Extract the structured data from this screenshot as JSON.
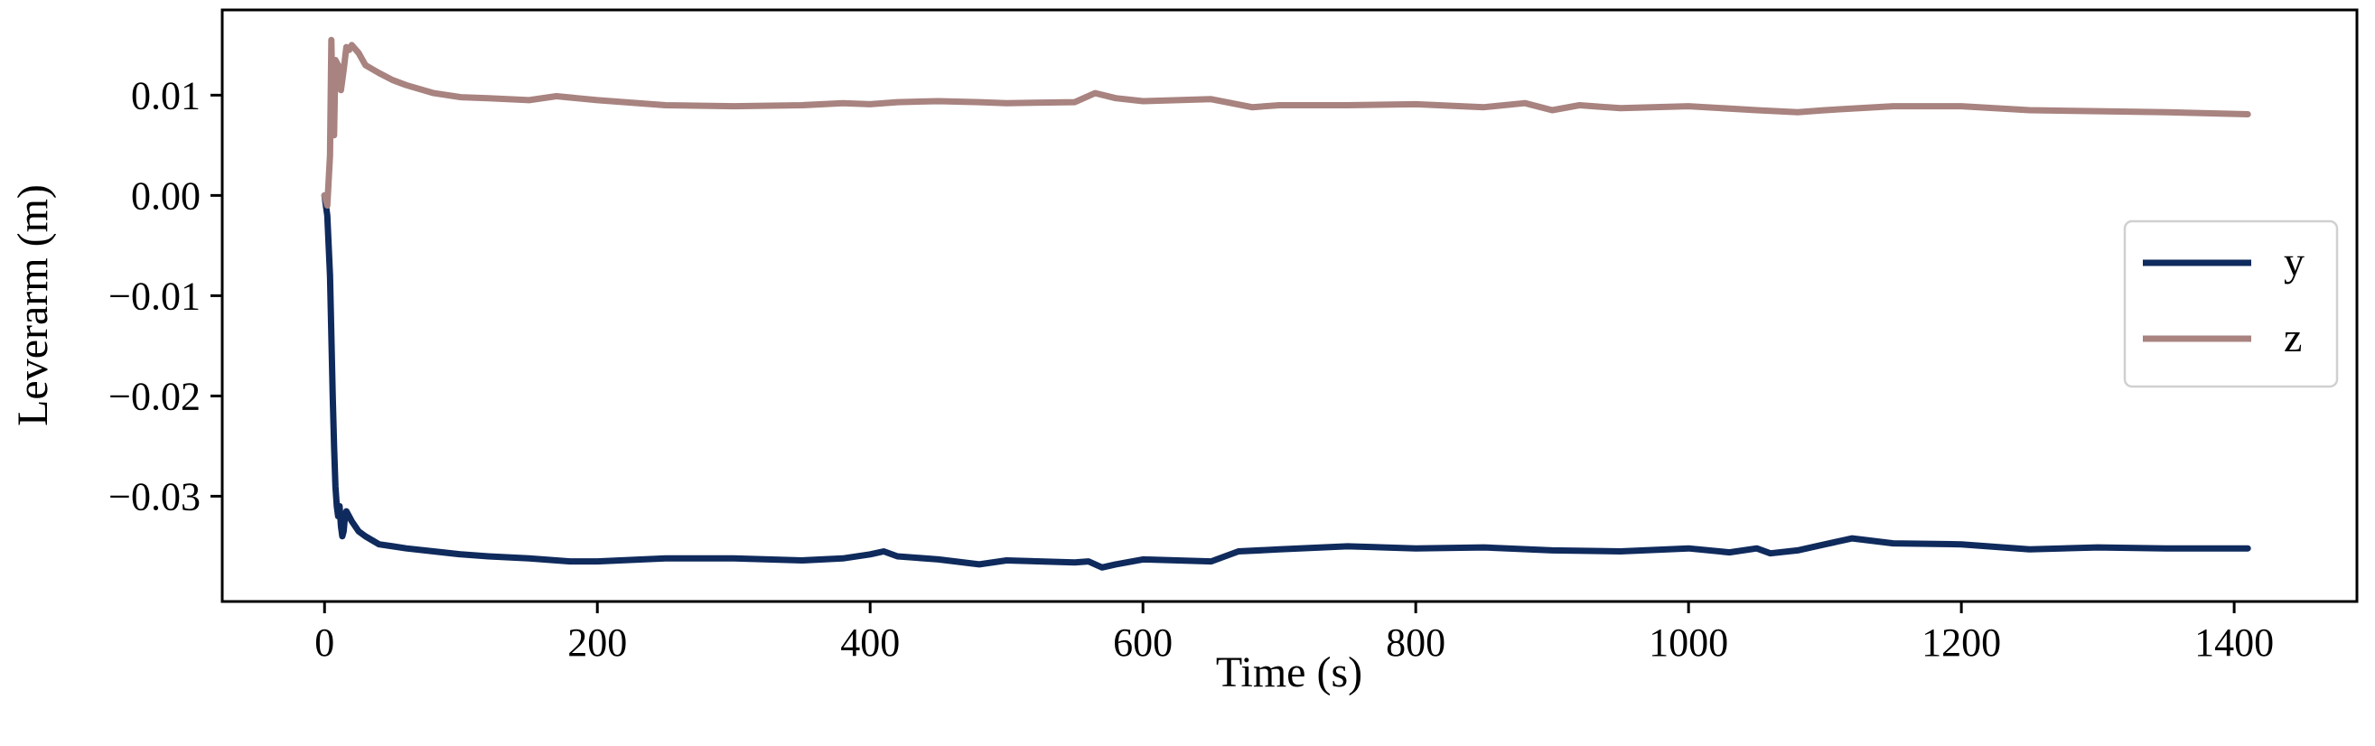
{
  "chart_data": {
    "type": "line",
    "title": "",
    "xlabel": "Time (s)",
    "ylabel": "Leverarm (m)",
    "xlim": [
      -75,
      1490
    ],
    "ylim": [
      -0.0405,
      0.0185
    ],
    "grid": false,
    "legend_position": "right",
    "x_ticks": [
      {
        "value": 0,
        "label": "0"
      },
      {
        "value": 200,
        "label": "200"
      },
      {
        "value": 400,
        "label": "400"
      },
      {
        "value": 600,
        "label": "600"
      },
      {
        "value": 800,
        "label": "800"
      },
      {
        "value": 1000,
        "label": "1000"
      },
      {
        "value": 1200,
        "label": "1200"
      },
      {
        "value": 1400,
        "label": "1400"
      }
    ],
    "y_ticks": [
      {
        "value": 0.01,
        "label": "0.01"
      },
      {
        "value": 0.0,
        "label": "0.00"
      },
      {
        "value": -0.01,
        "label": "−0.01"
      },
      {
        "value": -0.02,
        "label": "−0.02"
      },
      {
        "value": -0.03,
        "label": "−0.03"
      }
    ],
    "series": [
      {
        "name": "y",
        "color": "#0f2a5c",
        "x": [
          0,
          2,
          4,
          5,
          6,
          7,
          8,
          9,
          10,
          11,
          12,
          13,
          14,
          15,
          16,
          18,
          20,
          25,
          30,
          40,
          50,
          60,
          80,
          100,
          120,
          150,
          180,
          200,
          250,
          300,
          350,
          380,
          400,
          410,
          420,
          450,
          480,
          500,
          550,
          560,
          570,
          580,
          600,
          650,
          670,
          700,
          750,
          800,
          850,
          900,
          950,
          1000,
          1030,
          1050,
          1060,
          1080,
          1100,
          1120,
          1150,
          1200,
          1250,
          1300,
          1350,
          1410
        ],
        "y": [
          0.0,
          -0.002,
          -0.008,
          -0.014,
          -0.02,
          -0.025,
          -0.029,
          -0.031,
          -0.032,
          -0.031,
          -0.033,
          -0.034,
          -0.0335,
          -0.032,
          -0.0315,
          -0.032,
          -0.0325,
          -0.0335,
          -0.034,
          -0.0348,
          -0.035,
          -0.0352,
          -0.0355,
          -0.0358,
          -0.036,
          -0.0362,
          -0.0365,
          -0.0365,
          -0.0362,
          -0.0362,
          -0.0364,
          -0.0362,
          -0.0358,
          -0.0355,
          -0.036,
          -0.0363,
          -0.0368,
          -0.0364,
          -0.0366,
          -0.0365,
          -0.0371,
          -0.0368,
          -0.0363,
          -0.0365,
          -0.0355,
          -0.0353,
          -0.035,
          -0.0352,
          -0.0351,
          -0.0354,
          -0.0355,
          -0.0352,
          -0.0356,
          -0.0352,
          -0.0357,
          -0.0354,
          -0.0348,
          -0.0342,
          -0.0347,
          -0.0348,
          -0.0353,
          -0.0351,
          -0.0352,
          -0.0352
        ]
      },
      {
        "name": "z",
        "color": "#a88380",
        "x": [
          0,
          2,
          4,
          5,
          6,
          7,
          8,
          10,
          12,
          14,
          16,
          18,
          20,
          25,
          30,
          40,
          50,
          60,
          80,
          100,
          120,
          150,
          170,
          200,
          250,
          300,
          350,
          380,
          400,
          420,
          450,
          480,
          500,
          550,
          565,
          580,
          600,
          650,
          680,
          700,
          750,
          800,
          850,
          880,
          900,
          920,
          950,
          1000,
          1050,
          1080,
          1100,
          1150,
          1200,
          1250,
          1300,
          1350,
          1410
        ],
        "y": [
          0.0,
          -0.001,
          0.004,
          0.0155,
          0.008,
          0.006,
          0.0135,
          0.013,
          0.0105,
          0.0125,
          0.0148,
          0.0145,
          0.015,
          0.0142,
          0.013,
          0.0122,
          0.0115,
          0.011,
          0.0102,
          0.0098,
          0.0097,
          0.0095,
          0.0099,
          0.0095,
          0.009,
          0.0089,
          0.009,
          0.0092,
          0.0091,
          0.0093,
          0.0094,
          0.0093,
          0.0092,
          0.0093,
          0.0102,
          0.0097,
          0.0094,
          0.0096,
          0.0088,
          0.009,
          0.009,
          0.0091,
          0.0088,
          0.0092,
          0.0085,
          0.009,
          0.0087,
          0.0089,
          0.0085,
          0.0083,
          0.0085,
          0.0089,
          0.0089,
          0.0085,
          0.0084,
          0.0083,
          0.0081
        ]
      }
    ]
  }
}
